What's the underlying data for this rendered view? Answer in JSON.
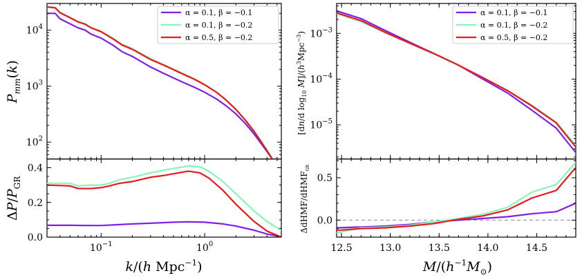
{
  "chart_data": [
    {
      "type": "line",
      "panel": "top-left",
      "ylabel": "P_mm(k)",
      "xscale": "log",
      "yscale": "log",
      "xlim": [
        0.03,
        5.5
      ],
      "ylim": [
        50,
        30000
      ],
      "yticks": [
        {
          "value": 100,
          "label": "10^2"
        },
        {
          "value": 1000,
          "label": "10^3"
        },
        {
          "value": 10000,
          "label": "10^4"
        }
      ],
      "legend_position": "top-right",
      "series": [
        {
          "name": "α = 0.1, β = −0.1",
          "color": "#7e1fe8",
          "x": [
            0.03,
            0.036,
            0.04,
            0.05,
            0.06,
            0.07,
            0.08,
            0.1,
            0.13,
            0.16,
            0.2,
            0.3,
            0.4,
            0.6,
            0.8,
            1.0,
            1.3,
            1.6,
            2.0,
            2.5,
            3.0,
            3.5,
            4.0,
            4.5
          ],
          "y": [
            20000,
            20000,
            16000,
            13000,
            11000,
            10000,
            8500,
            7200,
            5400,
            4100,
            3400,
            2200,
            1700,
            1200,
            950,
            780,
            590,
            450,
            320,
            210,
            140,
            95,
            68,
            50
          ]
        },
        {
          "name": "α = 0.1, β = −0.2",
          "color": "#86f5b6",
          "x": [
            0.03,
            0.036,
            0.04,
            0.05,
            0.06,
            0.07,
            0.08,
            0.1,
            0.13,
            0.16,
            0.2,
            0.3,
            0.4,
            0.6,
            0.8,
            1.0,
            1.3,
            1.6,
            2.0,
            2.5,
            3.0,
            3.5,
            4.0,
            4.5
          ],
          "y": [
            26000,
            25500,
            21000,
            17000,
            14300,
            13000,
            11200,
            9500,
            7200,
            5600,
            4700,
            3100,
            2450,
            1730,
            1350,
            1070,
            780,
            570,
            390,
            245,
            160,
            105,
            73,
            52
          ]
        },
        {
          "name": "α = 0.5, β = −0.2",
          "color": "#e8181c",
          "x": [
            0.03,
            0.036,
            0.04,
            0.05,
            0.06,
            0.07,
            0.08,
            0.1,
            0.13,
            0.16,
            0.2,
            0.3,
            0.4,
            0.6,
            0.8,
            1.0,
            1.3,
            1.6,
            2.0,
            2.5,
            3.0,
            3.5,
            4.0,
            4.5
          ],
          "y": [
            26000,
            25000,
            20500,
            16700,
            14000,
            12800,
            11000,
            9400,
            7000,
            5400,
            4550,
            3000,
            2380,
            1680,
            1320,
            1060,
            780,
            570,
            385,
            240,
            155,
            102,
            70,
            50
          ]
        }
      ]
    },
    {
      "type": "line",
      "panel": "bottom-left",
      "xlabel": "k/(h Mpc^−1)",
      "ylabel": "ΔP/P_GR",
      "xscale": "log",
      "xlim": [
        0.03,
        5.5
      ],
      "ylim": [
        0.0,
        0.45
      ],
      "xticks": [
        {
          "value": 0.1,
          "label": "10^−1"
        },
        {
          "value": 1,
          "label": "10^0"
        }
      ],
      "yticks": [
        {
          "value": 0.0,
          "label": "0.0"
        },
        {
          "value": 0.2,
          "label": "0.2"
        },
        {
          "value": 0.4,
          "label": "0.4"
        }
      ],
      "series": [
        {
          "name": "α = 0.1, β = −0.1",
          "color": "#7e1fe8",
          "x": [
            0.03,
            0.05,
            0.08,
            0.1,
            0.15,
            0.2,
            0.3,
            0.5,
            0.7,
            1.0,
            1.5,
            2.0,
            3.0,
            4.0,
            5.5
          ],
          "y": [
            0.068,
            0.068,
            0.067,
            0.067,
            0.072,
            0.076,
            0.08,
            0.086,
            0.088,
            0.086,
            0.076,
            0.064,
            0.04,
            0.018,
            0.002
          ]
        },
        {
          "name": "α = 0.1, β = −0.2",
          "color": "#86f5b6",
          "x": [
            0.03,
            0.05,
            0.06,
            0.08,
            0.1,
            0.12,
            0.15,
            0.2,
            0.3,
            0.4,
            0.5,
            0.7,
            0.9,
            1.1,
            1.5,
            2.0,
            3.0,
            4.0,
            5.5
          ],
          "y": [
            0.31,
            0.31,
            0.295,
            0.3,
            0.3,
            0.31,
            0.33,
            0.345,
            0.37,
            0.385,
            0.395,
            0.41,
            0.405,
            0.38,
            0.32,
            0.25,
            0.15,
            0.09,
            0.04
          ]
        },
        {
          "name": "α = 0.5, β = −0.2",
          "color": "#e8181c",
          "x": [
            0.03,
            0.05,
            0.06,
            0.08,
            0.1,
            0.12,
            0.15,
            0.2,
            0.3,
            0.4,
            0.5,
            0.7,
            0.9,
            1.1,
            1.5,
            2.0,
            3.0,
            4.0,
            5.5
          ],
          "y": [
            0.3,
            0.295,
            0.28,
            0.28,
            0.285,
            0.295,
            0.31,
            0.32,
            0.345,
            0.355,
            0.365,
            0.38,
            0.37,
            0.34,
            0.27,
            0.19,
            0.09,
            0.035,
            0.0
          ]
        }
      ]
    },
    {
      "type": "line",
      "panel": "top-right",
      "ylabel": "[dn/d log10 M]/(h^3 Mpc^−3)",
      "yscale": "log",
      "xlim": [
        12.45,
        14.9
      ],
      "ylim": [
        1.8e-06,
        0.0045
      ],
      "yticks": [
        {
          "value": 1e-05,
          "label": "10^−5"
        },
        {
          "value": 0.0001,
          "label": "10^−4"
        },
        {
          "value": 0.001,
          "label": "10^−3"
        }
      ],
      "legend_position": "top-right",
      "series": [
        {
          "name": "α = 0.1, β = −0.1",
          "color": "#7e1fe8",
          "x": [
            12.45,
            12.7,
            12.95,
            13.2,
            13.45,
            13.7,
            13.95,
            14.2,
            14.45,
            14.7,
            14.9
          ],
          "y": [
            0.0031,
            0.0021,
            0.00115,
            0.00064,
            0.00036,
            0.0002,
            0.0001,
            5e-05,
            2.1e-05,
            8.5e-06,
            2.5e-06
          ]
        },
        {
          "name": "α = 0.1, β = −0.2",
          "color": "#86f5b6",
          "x": [
            12.45,
            12.7,
            12.95,
            13.2,
            13.45,
            13.7,
            13.95,
            14.2,
            14.45,
            14.7,
            14.9
          ],
          "y": [
            0.0027,
            0.0018,
            0.00102,
            0.0006,
            0.00035,
            0.0002,
            0.000108,
            5.7e-05,
            2.7e-05,
            1.15e-05,
            3.6e-06
          ]
        },
        {
          "name": "α = 0.5, β = −0.2",
          "color": "#e8181c",
          "x": [
            12.45,
            12.7,
            12.95,
            13.2,
            13.45,
            13.7,
            13.95,
            14.2,
            14.45,
            14.7,
            14.9
          ],
          "y": [
            0.0028,
            0.0019,
            0.00105,
            0.00061,
            0.00036,
            0.000202,
            0.000108,
            5.6e-05,
            2.6e-05,
            1.1e-05,
            3.3e-06
          ]
        }
      ]
    },
    {
      "type": "line",
      "panel": "bottom-right",
      "xlabel": "M/(h^−1 M_⊙)",
      "ylabel": "ΔdHMF/dHMF_GR",
      "xlim": [
        12.45,
        14.9
      ],
      "ylim": [
        -0.2,
        0.72
      ],
      "xticks": [
        {
          "value": 12.5,
          "label": "12.5"
        },
        {
          "value": 13.0,
          "label": "13.0"
        },
        {
          "value": 13.5,
          "label": "13.5"
        },
        {
          "value": 14.0,
          "label": "14.0"
        },
        {
          "value": 14.5,
          "label": "14.5"
        }
      ],
      "yticks": [
        {
          "value": 0.0,
          "label": "0.0"
        },
        {
          "value": 0.5,
          "label": "0.5"
        }
      ],
      "reference_line": 0.0,
      "series": [
        {
          "name": "α = 0.1, β = −0.1",
          "color": "#7e1fe8",
          "x": [
            12.45,
            12.7,
            12.95,
            13.2,
            13.45,
            13.7,
            13.95,
            14.2,
            14.45,
            14.7,
            14.9
          ],
          "y": [
            -0.09,
            -0.08,
            -0.07,
            -0.05,
            -0.02,
            0.0,
            0.02,
            0.04,
            0.075,
            0.1,
            0.2
          ]
        },
        {
          "name": "α = 0.1, β = −0.2",
          "color": "#86f5b6",
          "x": [
            12.45,
            12.7,
            12.95,
            13.2,
            13.45,
            13.7,
            13.95,
            14.2,
            14.45,
            14.7,
            14.9
          ],
          "y": [
            -0.15,
            -0.09,
            -0.08,
            -0.06,
            -0.02,
            0.02,
            0.07,
            0.15,
            0.33,
            0.42,
            0.68
          ]
        },
        {
          "name": "α = 0.5, β = −0.2",
          "color": "#e8181c",
          "x": [
            12.45,
            12.7,
            12.95,
            13.2,
            13.45,
            13.7,
            13.95,
            14.2,
            14.45,
            14.7,
            14.9
          ],
          "y": [
            -0.12,
            -0.1,
            -0.09,
            -0.07,
            -0.04,
            0.01,
            0.05,
            0.12,
            0.26,
            0.35,
            0.62
          ]
        }
      ]
    }
  ]
}
